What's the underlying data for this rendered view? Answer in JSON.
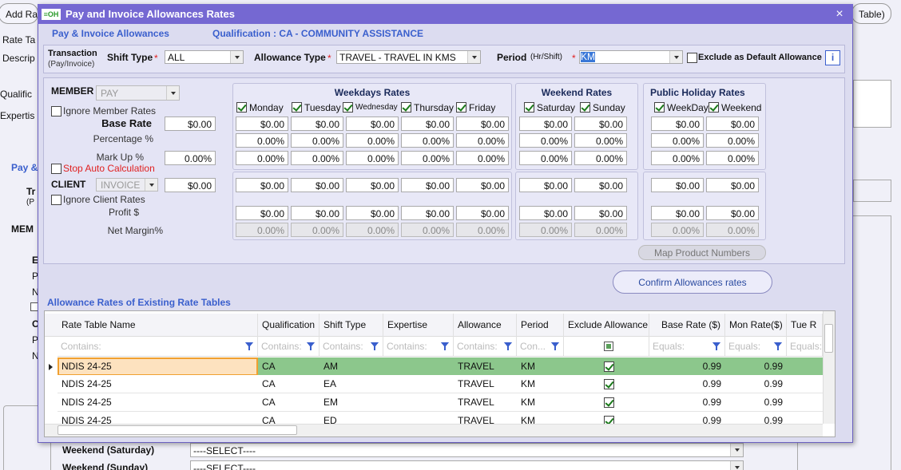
{
  "background": {
    "add_button": "Add Ra",
    "table_button": "Table)",
    "labels": [
      "Rate Ta",
      "Descrip",
      "Qualific",
      "Expertis",
      "Pay &",
      "Tr",
      "(P",
      "MEM",
      "E",
      "P",
      "N",
      "C",
      "P",
      "N"
    ],
    "weekend_saturday": "Weekend (Saturday)",
    "select_saturday": "----SELECT----",
    "weekend_sunday": "Weekend (Sunday)",
    "select_sunday": "----SELECT----"
  },
  "dialog": {
    "icon": "≡OH",
    "title": "Pay and Invoice Allowances Rates",
    "close": "×",
    "section": "Pay & Invoice Allowances",
    "qualification": "Qualification : CA - COMMUNITY ASSISTANCE",
    "filters": {
      "transaction": "Transaction",
      "transaction_hint": "(Pay/Invoice)",
      "shift_type": "Shift Type",
      "shift_type_required": "*",
      "shift_type_value": "ALL",
      "allowance_type": "Allowance Type",
      "allowance_type_required": "*",
      "allowance_type_value": "TRAVEL - TRAVEL IN KMS",
      "period": "Period",
      "period_hint": "(Hr/Shift)",
      "period_required": "*",
      "period_value": "KM",
      "exclude": "Exclude as Default Allowance",
      "info": "i"
    },
    "member": {
      "label": "MEMBER",
      "type": "PAY",
      "ignore": "Ignore Member Rates",
      "base_rate": "Base Rate",
      "base_value": "$0.00",
      "percentage": "Percentage %",
      "markup": "Mark Up %",
      "markup_value": "0.00%",
      "stop": "Stop Auto Calculation"
    },
    "client": {
      "label": "CLIENT",
      "type": "INVOICE",
      "value": "$0.00",
      "ignore": "Ignore Client Rates",
      "profit": "Profit $",
      "net_margin": "Net Margin%"
    },
    "groups": [
      {
        "title": "Weekdays Rates",
        "columns": [
          {
            "day": "Monday",
            "cells": [
              "$0.00",
              "0.00%",
              "0.00%",
              "$0.00",
              "$0.00",
              "0.00%"
            ]
          },
          {
            "day": "Tuesday",
            "cells": [
              "$0.00",
              "0.00%",
              "0.00%",
              "$0.00",
              "$0.00",
              "0.00%"
            ]
          },
          {
            "day": "Wednesday",
            "cells": [
              "$0.00",
              "0.00%",
              "0.00%",
              "$0.00",
              "$0.00",
              "0.00%"
            ]
          },
          {
            "day": "Thursday",
            "cells": [
              "$0.00",
              "0.00%",
              "0.00%",
              "$0.00",
              "$0.00",
              "0.00%"
            ]
          },
          {
            "day": "Friday",
            "cells": [
              "$0.00",
              "0.00%",
              "0.00%",
              "$0.00",
              "$0.00",
              "0.00%"
            ]
          }
        ]
      },
      {
        "title": "Weekend Rates",
        "columns": [
          {
            "day": "Saturday",
            "cells": [
              "$0.00",
              "0.00%",
              "0.00%",
              "$0.00",
              "$0.00",
              "0.00%"
            ]
          },
          {
            "day": "Sunday",
            "cells": [
              "$0.00",
              "0.00%",
              "0.00%",
              "$0.00",
              "$0.00",
              "0.00%"
            ]
          }
        ]
      },
      {
        "title": "Public Holiday Rates",
        "columns": [
          {
            "day": "WeekDay",
            "cells": [
              "$0.00",
              "0.00%",
              "0.00%",
              "$0.00",
              "$0.00",
              "0.00%"
            ]
          },
          {
            "day": "Weekend",
            "cells": [
              "$0.00",
              "0.00%",
              "0.00%",
              "$0.00",
              "$0.00",
              "0.00%"
            ]
          }
        ]
      }
    ],
    "map_button": "Map Product Numbers",
    "confirm_button": "Confirm Allowances rates",
    "grid": {
      "title": "Allowance Rates of Existing Rate Tables",
      "columns": [
        "Rate Table Name",
        "Qualification",
        "Shift Type",
        "Expertise",
        "Allowance",
        "Period",
        "Exclude Allowance",
        "Base Rate ($)",
        "Mon Rate($)",
        "Tue R"
      ],
      "filters": [
        "Contains:",
        "Contains:",
        "Contains:",
        "Contains:",
        "Contains:",
        "Con...",
        "Equals:",
        "Equals:",
        "Equals:"
      ],
      "rows": [
        {
          "name": "NDIS 24-25",
          "qualification": "CA",
          "shift": "AM",
          "allowance": "TRAVEL",
          "period": "KM",
          "base": "0.99",
          "mon": "0.99"
        },
        {
          "name": "NDIS 24-25",
          "qualification": "CA",
          "shift": "EA",
          "allowance": "TRAVEL",
          "period": "KM",
          "base": "0.99",
          "mon": "0.99"
        },
        {
          "name": "NDIS 24-25",
          "qualification": "CA",
          "shift": "EM",
          "allowance": "TRAVEL",
          "period": "KM",
          "base": "0.99",
          "mon": "0.99"
        },
        {
          "name": "NDIS 24-25",
          "qualification": "CA",
          "shift": "ED",
          "allowance": "TRAVEL",
          "period": "KM",
          "base": "0.99",
          "mon": "0.99"
        }
      ]
    }
  }
}
